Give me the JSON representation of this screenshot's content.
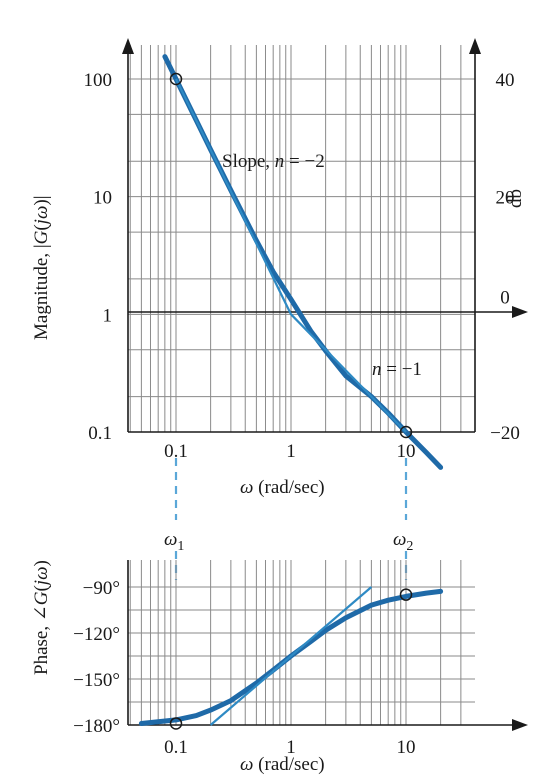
{
  "chart_data": [
    {
      "type": "line",
      "xlabel": "ω (rad/sec)",
      "ylabel": "Magnitude, |G(jω)|",
      "y2label": "db",
      "x_scale": "log",
      "y_scale": "log",
      "xlim": [
        0.05,
        30
      ],
      "ylim": [
        0.1,
        150
      ],
      "xticks": [
        0.1,
        1,
        10
      ],
      "xtick_labels": [
        "0.1",
        "1",
        "10"
      ],
      "yticks": [
        0.1,
        1,
        10,
        100
      ],
      "ytick_labels": [
        "0.1",
        "1",
        "10",
        "100"
      ],
      "y2ticks": [
        -20,
        0,
        20,
        40
      ],
      "y2tick_labels": [
        "−20",
        "0",
        "20",
        "40"
      ],
      "grid": true,
      "series": [
        {
          "kind": "exact",
          "x": [
            0.08,
            0.1,
            0.15,
            0.2,
            0.3,
            0.5,
            0.7,
            1,
            1.5,
            2,
            3,
            5,
            7,
            10,
            15,
            20
          ],
          "y": [
            155,
            100,
            44.5,
            25.1,
            11.3,
            4.23,
            2.3,
            1.34,
            0.71,
            0.49,
            0.3,
            0.2,
            0.145,
            0.1,
            0.067,
            0.05
          ]
        },
        {
          "kind": "asymptote",
          "x": [
            0.1,
            1,
            10
          ],
          "y": [
            100,
            1,
            0.1
          ]
        }
      ],
      "markers": [
        {
          "x": 0.1,
          "y": 100
        },
        {
          "x": 10,
          "y": 0.1
        }
      ],
      "annotations": [
        {
          "text": "Slope, n = −2",
          "x": 0.15,
          "y": 17
        },
        {
          "text": "n = −1",
          "x": 3.4,
          "y": 0.25
        }
      ]
    },
    {
      "type": "line",
      "xlabel": "ω (rad/sec)",
      "ylabel": "Phase, ∠G(jω)",
      "x_scale": "log",
      "xlim": [
        0.05,
        30
      ],
      "ylim": [
        -180,
        -80
      ],
      "xticks": [
        0.1,
        1,
        10
      ],
      "xtick_labels": [
        "0.1",
        "1",
        "10"
      ],
      "yticks": [
        -180,
        -150,
        -120,
        -90
      ],
      "ytick_labels": [
        "−180°",
        "−150°",
        "−120°",
        "−90°"
      ],
      "grid": true,
      "series": [
        {
          "kind": "exact",
          "x": [
            0.05,
            0.1,
            0.15,
            0.2,
            0.3,
            0.5,
            0.7,
            1,
            1.5,
            2,
            3,
            5,
            7,
            10,
            15,
            20
          ],
          "y": [
            -179,
            -176.7,
            -173.9,
            -170.3,
            -164.1,
            -152.7,
            -144.2,
            -135,
            -125.3,
            -118.3,
            -110.1,
            -101.8,
            -98.6,
            -96.1,
            -94,
            -92.9
          ]
        },
        {
          "kind": "asymptote",
          "x": [
            0.2,
            5
          ],
          "y": [
            -180,
            -90
          ]
        }
      ],
      "markers": [
        {
          "x": 0.1,
          "y": -179
        },
        {
          "x": 10,
          "y": -95
        }
      ]
    }
  ],
  "labels": {
    "omega1": "ω",
    "omega1_sub": "1",
    "omega2": "ω",
    "omega2_sub": "2",
    "slope_prefix": "Slope, ",
    "slope_n": "n",
    "slope_value": " = −2",
    "n1_n": "n",
    "n1_value": " = −1",
    "mag_prefix": "Magnitude, |",
    "mag_G": "G",
    "mag_paren": "(",
    "mag_jw": "jω",
    "mag_close": ")|",
    "phase_prefix": "Phase, ∠",
    "phase_G": "G",
    "phase_paren": "(",
    "phase_jw": "jω",
    "phase_close": ")",
    "xlabel_omega": "ω",
    "xlabel_units": " (rad/sec)"
  }
}
